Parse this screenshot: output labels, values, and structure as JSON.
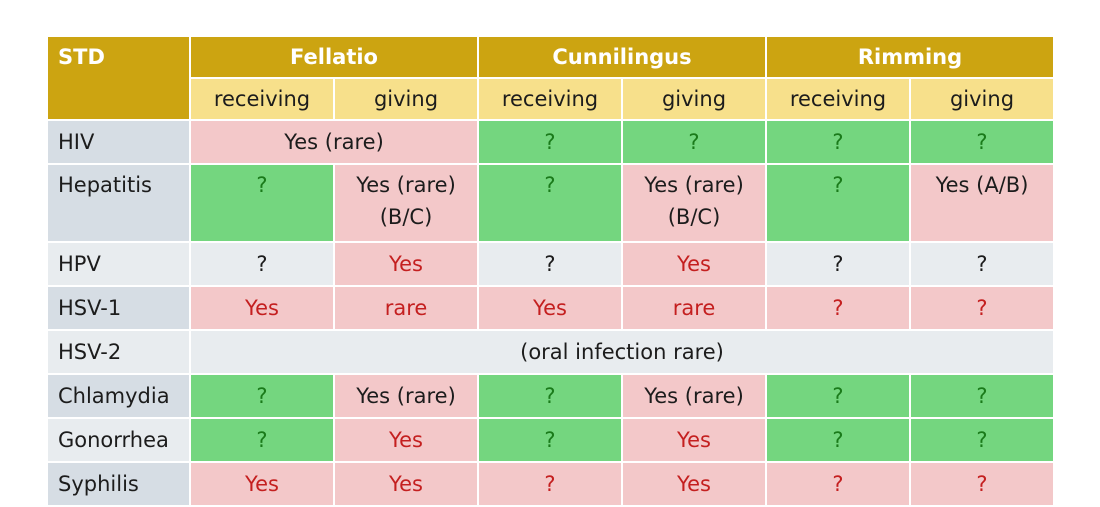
{
  "header": {
    "std": "STD",
    "groups": [
      "Fellatio",
      "Cunnilingus",
      "Rimming"
    ],
    "sub": [
      "receiving",
      "giving",
      "receiving",
      "giving",
      "receiving",
      "giving"
    ]
  },
  "rows": [
    {
      "name": "HIV",
      "merged": "Yes (rare)",
      "cells": [
        "?",
        "?",
        "?",
        "?"
      ]
    },
    {
      "name": "Hepatitis",
      "cells": [
        "?",
        "Yes (rare)\n(B/C)",
        "?",
        "Yes (rare)\n(B/C)",
        "?",
        "Yes (A/B)"
      ]
    },
    {
      "name": "HPV",
      "cells": [
        "?",
        "Yes",
        "?",
        "Yes",
        "?",
        "?"
      ]
    },
    {
      "name": "HSV-1",
      "cells": [
        "Yes",
        "rare",
        "Yes",
        "rare",
        "?",
        "?"
      ]
    },
    {
      "name": "HSV-2",
      "merged": "(oral infection rare)"
    },
    {
      "name": "Chlamydia",
      "cells": [
        "?",
        "Yes (rare)",
        "?",
        "Yes (rare)",
        "?",
        "?"
      ]
    },
    {
      "name": "Gonorrhea",
      "cells": [
        "?",
        "Yes",
        "?",
        "Yes",
        "?",
        "?"
      ]
    },
    {
      "name": "Syphilis",
      "cells": [
        "Yes",
        "Yes",
        "?",
        "Yes",
        "?",
        "?"
      ]
    }
  ],
  "colors": {
    "header_gold": "#cca411",
    "subheader_yellow": "#f7e08b",
    "pink": "#f3c8c9",
    "green": "#74d67f",
    "gray": "#e8ecef",
    "red_text": "#c41f1f",
    "green_text": "#1a7a1a"
  }
}
